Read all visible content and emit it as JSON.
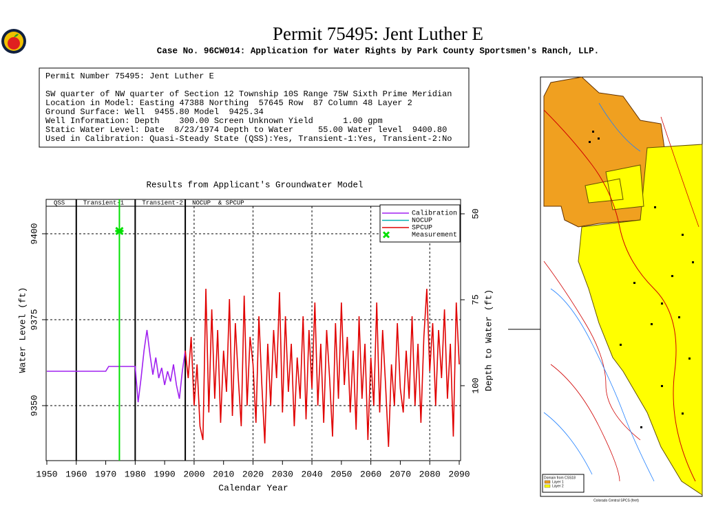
{
  "header": {
    "title": "Permit 75495:  Jent Luther E",
    "subtitle": "Case No. 96CW014: Application for Water Rights by Park County Sportsmen's Ranch, LLP."
  },
  "info": {
    "lines": [
      "Permit Number 75495: Jent Luther E",
      "SW quarter of NW quarter of Section 12 Township 10S Range 75W Sixth Prime Meridian",
      "Location in Model: Easting 47388 Northing  57645 Row  87 Column 48 Layer 2",
      "Ground Surface: Well  9455.80 Model  9425.34",
      "Well Information: Depth    300.00 Screen Unknown Yield      1.00 gpm",
      "Static Water Level: Date  8/23/1974 Depth to Water     55.00 Water level  9400.80",
      "Used in Calibration: Quasi-Steady State (QSS):Yes, Transient-1:Yes, Transient-2:No"
    ]
  },
  "chart_data": {
    "type": "line",
    "title": "Results from Applicant's Groundwater Model",
    "x_label": "Calendar Year",
    "y_label": "Water Level (ft)",
    "y2_label": "Depth to Water (ft)",
    "xlim": [
      1950,
      2090
    ],
    "xticks": [
      1950,
      1960,
      1970,
      1980,
      1990,
      2000,
      2010,
      2020,
      2030,
      2040,
      2050,
      2060,
      2070,
      2080,
      2090
    ],
    "ylim": [
      9334,
      9410
    ],
    "yticks": [
      9350,
      9375,
      9400
    ],
    "y2lim": [
      121.8,
      45.8
    ],
    "y2ticks": [
      50,
      75,
      100
    ],
    "grid": true,
    "phases": [
      {
        "name": "QSS",
        "start": 1950,
        "end": 1960
      },
      {
        "name": "Transient-1",
        "start": 1960,
        "end": 1980
      },
      {
        "name": "Transient-2",
        "start": 1980,
        "end": 1997
      },
      {
        "name": "NOCUP  & SPCUP",
        "start": 1997,
        "end": 2090
      }
    ],
    "series": [
      {
        "name": "Calibration",
        "color": "#a020f0",
        "x": [
          1950,
          1970,
          1971,
          1980,
          1981,
          1982,
          1983,
          1984,
          1985,
          1986,
          1987,
          1988,
          1989,
          1990,
          1991,
          1992,
          1993,
          1994,
          1995,
          1996,
          1997
        ],
        "values": [
          9360,
          9360,
          9361.4,
          9361.4,
          9351,
          9358,
          9366,
          9372,
          9365,
          9359,
          9364,
          9358,
          9361,
          9356,
          9360,
          9357,
          9362,
          9356,
          9352,
          9360,
          9366
        ]
      },
      {
        "name": "NOCUP",
        "color": "#00b0b0",
        "x": [],
        "values": []
      },
      {
        "name": "SPCUP",
        "color": "#e00000",
        "x": [
          1997,
          1998,
          1999,
          2000,
          2001,
          2002,
          2003,
          2004,
          2005,
          2006,
          2007,
          2008,
          2009,
          2010,
          2011,
          2012,
          2013,
          2014,
          2015,
          2016,
          2017,
          2018,
          2019,
          2020,
          2021,
          2022,
          2023,
          2024,
          2025,
          2026,
          2027,
          2028,
          2029,
          2030,
          2031,
          2032,
          2033,
          2034,
          2035,
          2036,
          2037,
          2038,
          2039,
          2040,
          2041,
          2042,
          2043,
          2044,
          2045,
          2046,
          2047,
          2048,
          2049,
          2050,
          2051,
          2052,
          2053,
          2054,
          2055,
          2056,
          2057,
          2058,
          2059,
          2060,
          2061,
          2062,
          2063,
          2064,
          2065,
          2066,
          2067,
          2068,
          2069,
          2070,
          2071,
          2072,
          2073,
          2074,
          2075,
          2076,
          2077,
          2078,
          2079,
          2080,
          2081,
          2082,
          2083,
          2084,
          2085,
          2086,
          2087,
          2088,
          2089,
          2090
        ],
        "values": [
          9366,
          9358,
          9370,
          9350,
          9362,
          9344,
          9340,
          9384,
          9348,
          9378,
          9352,
          9372,
          9345,
          9366,
          9354,
          9381,
          9347,
          9374,
          9358,
          9344,
          9382,
          9350,
          9370,
          9362,
          9345,
          9376,
          9356,
          9339,
          9368,
          9350,
          9372,
          9358,
          9383,
          9348,
          9376,
          9354,
          9368,
          9344,
          9364,
          9352,
          9376,
          9346,
          9372,
          9355,
          9380,
          9350,
          9368,
          9345,
          9372,
          9358,
          9341,
          9374,
          9352,
          9380,
          9356,
          9370,
          9348,
          9366,
          9343,
          9376,
          9352,
          9368,
          9340,
          9364,
          9350,
          9380,
          9348,
          9372,
          9356,
          9338,
          9362,
          9350,
          9374,
          9355,
          9348,
          9366,
          9352,
          9376,
          9350,
          9368,
          9345,
          9370,
          9384,
          9360,
          9374,
          9350,
          9372,
          9358,
          9378,
          9352,
          9368,
          9341,
          9380,
          9362
        ]
      },
      {
        "name": "Measurement",
        "color": "#00e000",
        "x": [
          1974.64
        ],
        "values": [
          9400.8
        ]
      }
    ]
  },
  "map": {
    "legend_title": "Domain from CSS18",
    "legend": [
      {
        "name": "Layer 1",
        "color": "#f0a020"
      },
      {
        "name": "Layer 2",
        "color": "#ffff00"
      }
    ],
    "x_label": "Colorado Central SPCS (feet)"
  }
}
